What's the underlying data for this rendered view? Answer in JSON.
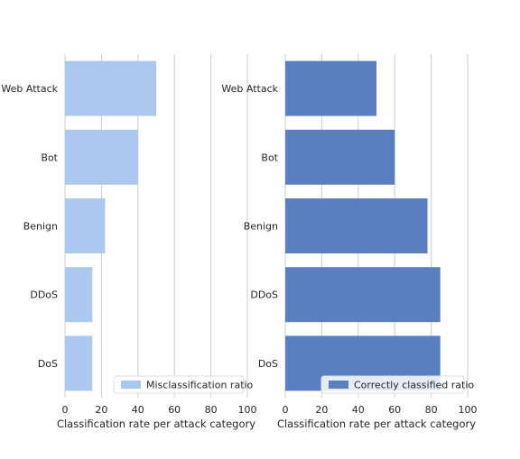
{
  "chart_data": [
    {
      "type": "bar",
      "orientation": "horizontal",
      "categories": [
        "Web Attack",
        "Bot",
        "Benign",
        "DDoS",
        "DoS"
      ],
      "series": [
        {
          "name": "Misclassification ratio",
          "values": [
            50,
            40,
            22,
            15,
            15
          ],
          "color": "#abc9ee"
        }
      ],
      "xlabel": "Classification rate per attack category",
      "xlim": [
        0,
        100
      ],
      "xticks": [
        "0",
        "20",
        "40",
        "60",
        "80",
        "100"
      ],
      "grid": "vertical",
      "legend_position": "bottom-right"
    },
    {
      "type": "bar",
      "orientation": "horizontal",
      "categories": [
        "Web Attack",
        "Bot",
        "Benign",
        "DDoS",
        "DoS"
      ],
      "series": [
        {
          "name": "Correctly classified ratio",
          "values": [
            50,
            60,
            78,
            85,
            85
          ],
          "color": "#5a7fc0"
        }
      ],
      "xlabel": "Classification rate per attack category",
      "xlim": [
        0,
        100
      ],
      "xticks": [
        "0",
        "20",
        "40",
        "60",
        "80",
        "100"
      ],
      "grid": "vertical",
      "legend_position": "bottom-right"
    }
  ]
}
